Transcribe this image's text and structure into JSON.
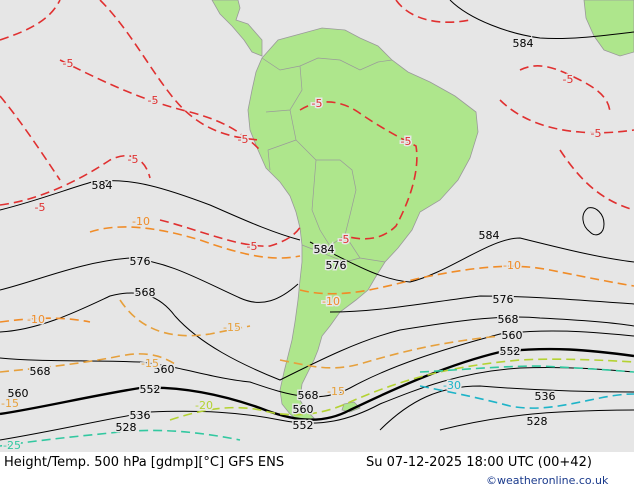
{
  "caption": {
    "left": "Height/Temp. 500 hPa [gdmp][°C] GFS ENS",
    "right": "Su 07-12-2025 18:00 UTC (00+42)",
    "credit": "©weatheronline.co.uk"
  },
  "colors": {
    "ocean": "#e6e6e6",
    "land": "#aee68c",
    "height_contour": "#000000",
    "temp_minus5": "#e03030",
    "temp_minus10": "#f08c28",
    "temp_minus15": "#e6a03c",
    "temp_minus20": "#b4d232",
    "temp_minus25": "#32c8a0",
    "temp_minus30": "#1eb4c8"
  },
  "height_labels": [
    "584",
    "584",
    "584",
    "584",
    "576",
    "576",
    "576",
    "568",
    "568",
    "568",
    "568",
    "560",
    "560",
    "560",
    "560",
    "552",
    "552",
    "552",
    "536",
    "536",
    "528",
    "528"
  ],
  "temp_labels": [
    "-5",
    "-5",
    "-5",
    "-5",
    "-5",
    "-5",
    "-5",
    "-5",
    "-5",
    "-5",
    "-5",
    "-10",
    "-10",
    "-10",
    "-10",
    "-15",
    "-15",
    "-15",
    "-15",
    "-20",
    "-25",
    "-30"
  ]
}
